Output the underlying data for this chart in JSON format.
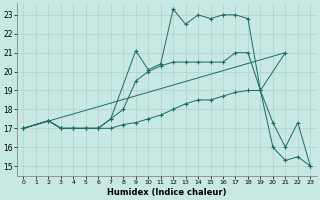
{
  "xlabel": "Humidex (Indice chaleur)",
  "xlim": [
    -0.5,
    23.5
  ],
  "ylim": [
    14.5,
    23.6
  ],
  "yticks": [
    15,
    16,
    17,
    18,
    19,
    20,
    21,
    22,
    23
  ],
  "xticks": [
    0,
    1,
    2,
    3,
    4,
    5,
    6,
    7,
    8,
    9,
    10,
    11,
    12,
    13,
    14,
    15,
    16,
    17,
    18,
    19,
    20,
    21,
    22,
    23
  ],
  "background_color": "#c8e8e4",
  "grid_color": "#a8ccc8",
  "line_color": "#1a6b60",
  "lines": [
    {
      "x": [
        0,
        2,
        3,
        4,
        5,
        6,
        7,
        9,
        10,
        11,
        12,
        13,
        14,
        15,
        16,
        17,
        18,
        19,
        20,
        21,
        22,
        23
      ],
      "y": [
        17,
        17.4,
        17,
        17,
        17,
        17,
        17.5,
        21.1,
        20.1,
        20.4,
        23.3,
        22.5,
        23.0,
        22.8,
        23.0,
        23.0,
        22.8,
        19.0,
        17.3,
        16.0,
        17.3,
        15.0
      ],
      "markers": true
    },
    {
      "x": [
        0,
        2,
        3,
        4,
        5,
        6,
        7,
        8,
        9,
        10,
        11,
        12,
        13,
        14,
        15,
        16,
        17,
        18,
        19,
        21
      ],
      "y": [
        17,
        17.4,
        17,
        17,
        17,
        17,
        17.5,
        18.0,
        19.5,
        20.0,
        20.3,
        20.5,
        20.5,
        20.5,
        20.5,
        20.5,
        21.0,
        21.0,
        19.0,
        21.0
      ],
      "markers": true
    },
    {
      "x": [
        0,
        2,
        3,
        4,
        5,
        6,
        7,
        8,
        9,
        10,
        11,
        12,
        13,
        14,
        15,
        16,
        17,
        18,
        19,
        20,
        21,
        22,
        23
      ],
      "y": [
        17,
        17.4,
        17,
        17,
        17,
        17,
        17.0,
        17.2,
        17.3,
        17.5,
        17.7,
        18.0,
        18.3,
        18.5,
        18.5,
        18.7,
        18.9,
        19.0,
        19.0,
        16.0,
        15.3,
        15.5,
        15.0
      ],
      "markers": true
    },
    {
      "x": [
        0,
        21
      ],
      "y": [
        17,
        21
      ],
      "markers": false
    }
  ]
}
